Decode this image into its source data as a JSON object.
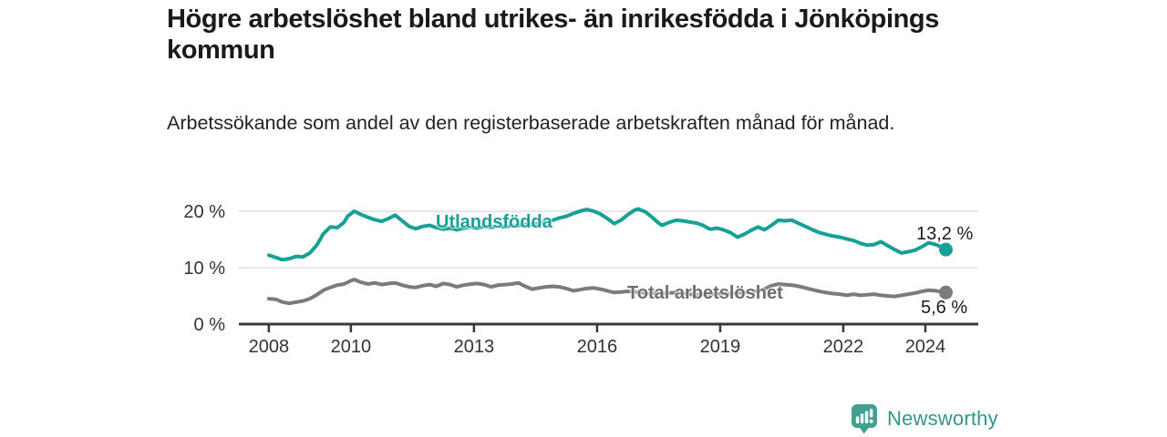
{
  "header": {
    "title": "Högre arbetslöshet bland utrikes- än inrikesfödda i Jönköpings kommun",
    "subtitle": "Arbetssökande som andel av den registerbaserade arbetskraften månad för månad."
  },
  "colors": {
    "brand": "#41a090",
    "brand_text": "#35948a",
    "axis": "#383838",
    "grid": "#e1e1e1",
    "tick_text": "#333333",
    "series_foreign": "#16a096",
    "series_total": "#7b7b7b"
  },
  "chart_data": {
    "type": "line",
    "unit": "%",
    "grid": "horizontal",
    "legend_position": "inline-labels",
    "xlim": [
      2007.27,
      2025.29
    ],
    "ylim": [
      0,
      21.77
    ],
    "x_ticks": [
      {
        "value": 2008,
        "label": "2008"
      },
      {
        "value": 2010,
        "label": "2010"
      },
      {
        "value": 2013,
        "label": "2013"
      },
      {
        "value": 2016,
        "label": "2016"
      },
      {
        "value": 2019,
        "label": "2019"
      },
      {
        "value": 2022,
        "label": "2022"
      },
      {
        "value": 2024,
        "label": "2024"
      }
    ],
    "y_ticks": [
      {
        "value": 0,
        "label": "0 %"
      },
      {
        "value": 10,
        "label": "10 %"
      },
      {
        "value": 20,
        "label": "20 %"
      }
    ],
    "series": [
      {
        "name": "Utlandsfödda",
        "color": "#16a096",
        "end_label": "13,2 %",
        "end_value": 13.2,
        "points": [
          [
            2008.0,
            12.2
          ],
          [
            2008.17,
            11.8
          ],
          [
            2008.33,
            11.4
          ],
          [
            2008.5,
            11.6
          ],
          [
            2008.67,
            12.0
          ],
          [
            2008.83,
            11.9
          ],
          [
            2009.0,
            12.6
          ],
          [
            2009.17,
            14.0
          ],
          [
            2009.33,
            16.0
          ],
          [
            2009.5,
            17.2
          ],
          [
            2009.67,
            17.1
          ],
          [
            2009.83,
            18.0
          ],
          [
            2009.92,
            19.1
          ],
          [
            2010.08,
            20.0
          ],
          [
            2010.25,
            19.4
          ],
          [
            2010.42,
            18.9
          ],
          [
            2010.58,
            18.5
          ],
          [
            2010.75,
            18.2
          ],
          [
            2010.92,
            18.7
          ],
          [
            2011.08,
            19.3
          ],
          [
            2011.25,
            18.3
          ],
          [
            2011.42,
            17.3
          ],
          [
            2011.58,
            16.9
          ],
          [
            2011.75,
            17.3
          ],
          [
            2011.92,
            17.5
          ],
          [
            2012.08,
            17.1
          ],
          [
            2012.25,
            16.8
          ],
          [
            2012.42,
            17.0
          ],
          [
            2012.58,
            16.7
          ],
          [
            2012.75,
            17.0
          ],
          [
            2012.92,
            17.2
          ],
          [
            2013.08,
            17.0
          ],
          [
            2013.25,
            17.3
          ],
          [
            2013.42,
            17.1
          ],
          [
            2013.58,
            17.4
          ],
          [
            2013.75,
            17.2
          ],
          [
            2013.92,
            17.5
          ],
          [
            2014.08,
            17.4
          ],
          [
            2014.25,
            17.7
          ],
          [
            2014.42,
            17.6
          ],
          [
            2014.58,
            17.9
          ],
          [
            2014.75,
            18.1
          ],
          [
            2014.92,
            18.4
          ],
          [
            2015.08,
            18.8
          ],
          [
            2015.25,
            19.1
          ],
          [
            2015.42,
            19.6
          ],
          [
            2015.58,
            20.0
          ],
          [
            2015.75,
            20.3
          ],
          [
            2015.92,
            20.0
          ],
          [
            2016.08,
            19.5
          ],
          [
            2016.25,
            18.7
          ],
          [
            2016.42,
            17.8
          ],
          [
            2016.58,
            18.4
          ],
          [
            2016.75,
            19.4
          ],
          [
            2016.92,
            20.2
          ],
          [
            2017.0,
            20.4
          ],
          [
            2017.17,
            19.9
          ],
          [
            2017.33,
            19.0
          ],
          [
            2017.5,
            17.9
          ],
          [
            2017.58,
            17.5
          ],
          [
            2017.75,
            18.0
          ],
          [
            2017.92,
            18.4
          ],
          [
            2018.08,
            18.3
          ],
          [
            2018.25,
            18.1
          ],
          [
            2018.42,
            17.9
          ],
          [
            2018.58,
            17.5
          ],
          [
            2018.75,
            16.8
          ],
          [
            2018.92,
            17.0
          ],
          [
            2019.08,
            16.7
          ],
          [
            2019.25,
            16.2
          ],
          [
            2019.42,
            15.4
          ],
          [
            2019.58,
            15.9
          ],
          [
            2019.75,
            16.6
          ],
          [
            2019.92,
            17.2
          ],
          [
            2020.08,
            16.7
          ],
          [
            2020.25,
            17.5
          ],
          [
            2020.42,
            18.4
          ],
          [
            2020.58,
            18.3
          ],
          [
            2020.75,
            18.4
          ],
          [
            2020.92,
            17.8
          ],
          [
            2021.08,
            17.3
          ],
          [
            2021.25,
            16.7
          ],
          [
            2021.42,
            16.2
          ],
          [
            2021.58,
            15.9
          ],
          [
            2021.75,
            15.6
          ],
          [
            2021.92,
            15.4
          ],
          [
            2022.08,
            15.1
          ],
          [
            2022.25,
            14.8
          ],
          [
            2022.42,
            14.3
          ],
          [
            2022.58,
            14.0
          ],
          [
            2022.75,
            14.1
          ],
          [
            2022.92,
            14.6
          ],
          [
            2023.08,
            13.9
          ],
          [
            2023.25,
            13.2
          ],
          [
            2023.42,
            12.6
          ],
          [
            2023.58,
            12.8
          ],
          [
            2023.75,
            13.1
          ],
          [
            2023.92,
            13.7
          ],
          [
            2024.08,
            14.4
          ],
          [
            2024.25,
            14.1
          ],
          [
            2024.42,
            13.6
          ],
          [
            2024.5,
            13.2
          ]
        ]
      },
      {
        "name": "Total arbetslöshet",
        "color": "#7b7b7b",
        "end_label": "5,6 %",
        "end_value": 5.6,
        "points": [
          [
            2008.0,
            4.5
          ],
          [
            2008.17,
            4.4
          ],
          [
            2008.33,
            3.9
          ],
          [
            2008.5,
            3.7
          ],
          [
            2008.67,
            3.9
          ],
          [
            2008.83,
            4.1
          ],
          [
            2009.0,
            4.5
          ],
          [
            2009.17,
            5.2
          ],
          [
            2009.33,
            6.0
          ],
          [
            2009.5,
            6.5
          ],
          [
            2009.67,
            6.9
          ],
          [
            2009.83,
            7.1
          ],
          [
            2010.0,
            7.7
          ],
          [
            2010.08,
            7.9
          ],
          [
            2010.25,
            7.4
          ],
          [
            2010.42,
            7.1
          ],
          [
            2010.58,
            7.3
          ],
          [
            2010.75,
            7.0
          ],
          [
            2010.92,
            7.2
          ],
          [
            2011.08,
            7.3
          ],
          [
            2011.25,
            6.9
          ],
          [
            2011.42,
            6.6
          ],
          [
            2011.58,
            6.5
          ],
          [
            2011.75,
            6.8
          ],
          [
            2011.92,
            7.0
          ],
          [
            2012.08,
            6.7
          ],
          [
            2012.25,
            7.2
          ],
          [
            2012.42,
            7.0
          ],
          [
            2012.58,
            6.6
          ],
          [
            2012.75,
            6.9
          ],
          [
            2012.92,
            7.1
          ],
          [
            2013.08,
            7.2
          ],
          [
            2013.25,
            7.0
          ],
          [
            2013.42,
            6.6
          ],
          [
            2013.58,
            6.9
          ],
          [
            2013.75,
            7.0
          ],
          [
            2013.92,
            7.1
          ],
          [
            2014.08,
            7.3
          ],
          [
            2014.25,
            6.7
          ],
          [
            2014.42,
            6.2
          ],
          [
            2014.58,
            6.4
          ],
          [
            2014.75,
            6.6
          ],
          [
            2014.92,
            6.7
          ],
          [
            2015.08,
            6.6
          ],
          [
            2015.25,
            6.3
          ],
          [
            2015.42,
            5.9
          ],
          [
            2015.58,
            6.1
          ],
          [
            2015.75,
            6.3
          ],
          [
            2015.92,
            6.4
          ],
          [
            2016.08,
            6.2
          ],
          [
            2016.25,
            5.9
          ],
          [
            2016.42,
            5.6
          ],
          [
            2016.58,
            5.7
          ],
          [
            2016.75,
            5.8
          ],
          [
            2016.92,
            5.7
          ],
          [
            2017.08,
            5.6
          ],
          [
            2017.25,
            5.4
          ],
          [
            2017.42,
            5.5
          ],
          [
            2017.58,
            5.4
          ],
          [
            2017.75,
            5.5
          ],
          [
            2017.92,
            5.6
          ],
          [
            2018.08,
            5.4
          ],
          [
            2018.25,
            5.3
          ],
          [
            2018.42,
            5.2
          ],
          [
            2018.58,
            5.3
          ],
          [
            2018.75,
            5.2
          ],
          [
            2018.92,
            5.4
          ],
          [
            2019.08,
            5.3
          ],
          [
            2019.25,
            5.4
          ],
          [
            2019.42,
            5.5
          ],
          [
            2019.58,
            5.6
          ],
          [
            2019.75,
            5.7
          ],
          [
            2019.92,
            5.9
          ],
          [
            2020.08,
            6.2
          ],
          [
            2020.25,
            6.8
          ],
          [
            2020.42,
            7.1
          ],
          [
            2020.58,
            7.0
          ],
          [
            2020.75,
            6.9
          ],
          [
            2020.92,
            6.7
          ],
          [
            2021.08,
            6.4
          ],
          [
            2021.25,
            6.1
          ],
          [
            2021.42,
            5.8
          ],
          [
            2021.58,
            5.6
          ],
          [
            2021.75,
            5.4
          ],
          [
            2021.92,
            5.3
          ],
          [
            2022.08,
            5.1
          ],
          [
            2022.25,
            5.3
          ],
          [
            2022.42,
            5.1
          ],
          [
            2022.58,
            5.2
          ],
          [
            2022.75,
            5.3
          ],
          [
            2022.92,
            5.1
          ],
          [
            2023.08,
            5.0
          ],
          [
            2023.25,
            4.9
          ],
          [
            2023.42,
            5.1
          ],
          [
            2023.58,
            5.3
          ],
          [
            2023.75,
            5.5
          ],
          [
            2023.92,
            5.8
          ],
          [
            2024.08,
            6.0
          ],
          [
            2024.25,
            5.9
          ],
          [
            2024.42,
            5.7
          ],
          [
            2024.5,
            5.6
          ]
        ]
      }
    ]
  },
  "footer": {
    "brand": "Newsworthy"
  }
}
